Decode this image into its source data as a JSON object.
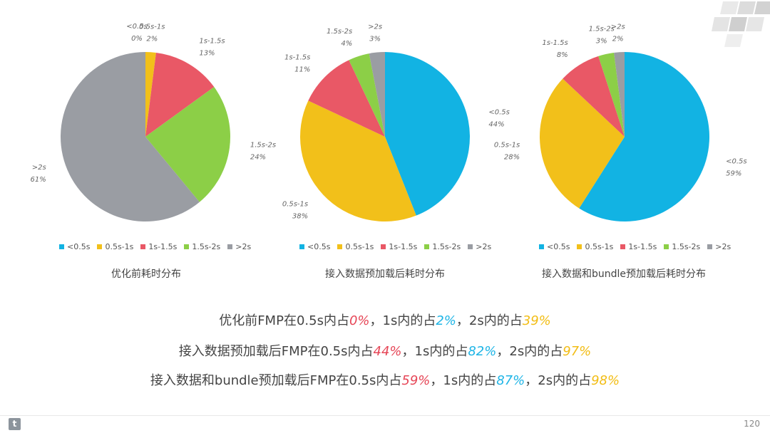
{
  "colors": {
    "lt05": "#12b3e3",
    "s05_1": "#f2c01a",
    "s1_15": "#e95866",
    "s15_2": "#8ccf47",
    "gt2": "#9a9da3",
    "red": "#e64657",
    "blue": "#1fb5e6",
    "yellow": "#f2bd15"
  },
  "chart_data": [
    {
      "type": "pie",
      "title": "优化前耗时分布",
      "categories": [
        "<0.5s",
        "0.5s-1s",
        "1s-1.5s",
        "1.5s-2s",
        ">2s"
      ],
      "values": [
        0,
        2,
        13,
        24,
        61
      ],
      "labels": [
        "0%",
        "2%",
        "13%",
        "24%",
        "61%"
      ],
      "legend": "bottom"
    },
    {
      "type": "pie",
      "title": "接入数据预加载后耗时分布",
      "categories": [
        "<0.5s",
        "0.5s-1s",
        "1s-1.5s",
        "1.5s-2s",
        ">2s"
      ],
      "values": [
        44,
        38,
        11,
        4,
        3
      ],
      "labels": [
        "44%",
        "38%",
        "11%",
        "4%",
        "3%"
      ],
      "legend": "bottom"
    },
    {
      "type": "pie",
      "title": "接入数据和bundle预加载后耗时分布",
      "categories": [
        "<0.5s",
        "0.5s-1s",
        "1s-1.5s",
        "1.5s-2s",
        ">2s"
      ],
      "values": [
        59,
        28,
        8,
        3,
        2
      ],
      "labels": [
        "59%",
        "28%",
        "8%",
        "3%",
        "2%"
      ],
      "legend": "bottom"
    }
  ],
  "summary": [
    {
      "prefix": "优化前FMP在0.5s内占",
      "v1": "0%",
      "mid1": "，1s内的占",
      "v2": "2%",
      "mid2": "，2s内的占",
      "v3": "39%"
    },
    {
      "prefix": "接入数据预加载后FMP在0.5s内占",
      "v1": "44%",
      "mid1": "，1s内的占",
      "v2": "82%",
      "mid2": "，2s内的占",
      "v3": "97%"
    },
    {
      "prefix": "接入数据和bundle预加载后FMP在0.5s内占",
      "v1": "59%",
      "mid1": "，1s内的占",
      "v2": "87%",
      "mid2": "，2s内的占",
      "v3": "98%"
    }
  ],
  "footer": {
    "page_number": "120",
    "logo_letter": "t"
  }
}
